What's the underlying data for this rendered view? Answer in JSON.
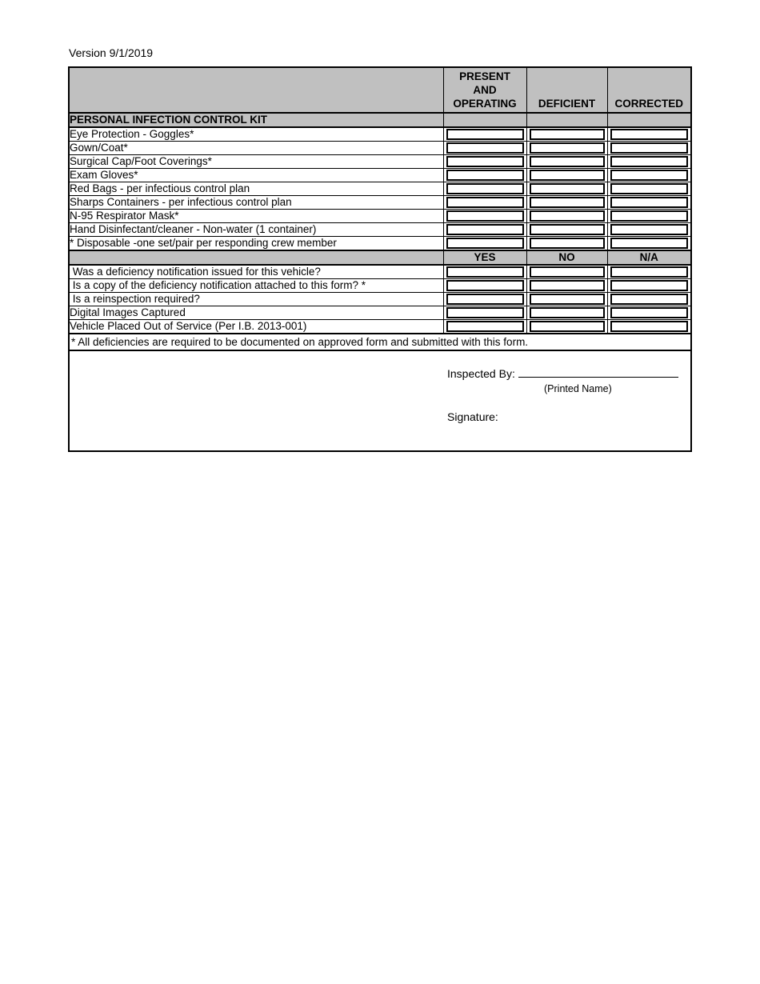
{
  "page": {
    "version_label": "Version 9/1/2019"
  },
  "colors": {
    "header_gray": "#c0c0c0",
    "border": "#000000",
    "background": "#ffffff"
  },
  "table": {
    "header": {
      "col2_lines": [
        "PRESENT",
        "AND",
        "OPERATING"
      ],
      "col3": "DEFICIENT",
      "col4": "CORRECTED"
    },
    "section1": {
      "title": "PERSONAL INFECTION CONTROL KIT",
      "items": [
        "Eye Protection - Goggles*",
        "Gown/Coat*",
        "Surgical Cap/Foot Coverings*",
        "Exam Gloves*",
        "Red Bags - per infectious control plan",
        "Sharps Containers - per infectious control plan",
        "N-95 Respirator Mask*",
        "Hand Disinfectant/cleaner - Non-water (1 container)",
        "* Disposable -one set/pair per responding crew member"
      ]
    },
    "section2": {
      "columns": [
        "YES",
        "NO",
        "N/A"
      ],
      "items": [
        " Was a deficiency notification issued for this vehicle?",
        " Is a copy of the deficiency notification attached to this form? *",
        " Is a reinspection required?",
        "Digital Images Captured",
        "Vehicle Placed Out of Service (Per I.B. 2013-001)"
      ]
    },
    "footnote": "* All deficiencies are required to be documented on approved form and submitted with this form.",
    "signoff": {
      "inspected_by_label": "Inspected By:",
      "printed_name_label": "(Printed Name)",
      "signature_label": "Signature:"
    }
  }
}
